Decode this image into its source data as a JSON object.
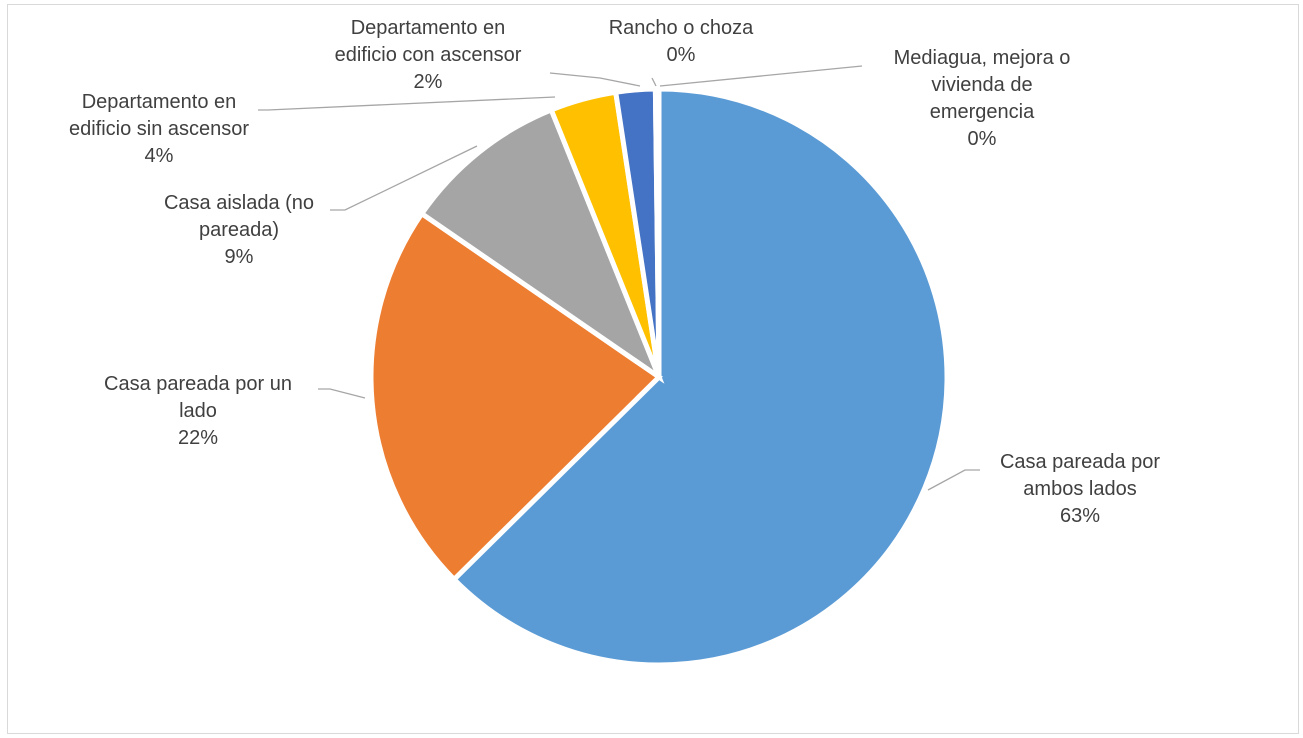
{
  "chart_data": {
    "type": "pie",
    "title": "",
    "start_angle_deg": 0,
    "direction": "clockwise",
    "slices": [
      {
        "category": "Casa pareada por ambos lados",
        "label_lines": [
          "Casa pareada por",
          "ambos lados"
        ],
        "percent_label": "63%",
        "value": 62.6,
        "color": "#5b9bd5"
      },
      {
        "category": "Casa pareada por un lado",
        "label_lines": [
          "Casa pareada por un",
          "lado"
        ],
        "percent_label": "22%",
        "value": 22.0,
        "color": "#ed7d31"
      },
      {
        "category": "Casa aislada (no pareada)",
        "label_lines": [
          "Casa aislada (no",
          "pareada)"
        ],
        "percent_label": "9%",
        "value": 9.3,
        "color": "#a5a5a5"
      },
      {
        "category": "Departamento en edificio sin ascensor",
        "label_lines": [
          "Departamento en",
          "edificio sin ascensor"
        ],
        "percent_label": "4%",
        "value": 3.7,
        "color": "#ffc000"
      },
      {
        "category": "Departamento en edificio con ascensor",
        "label_lines": [
          "Departamento en",
          "edificio con ascensor"
        ],
        "percent_label": "2%",
        "value": 2.2,
        "color": "#4472c4"
      },
      {
        "category": "Rancho o choza",
        "label_lines": [
          "Rancho o choza"
        ],
        "percent_label": "0%",
        "value": 0.1,
        "color": "#70ad47"
      },
      {
        "category": "Mediagua, mejora o vivienda de emergencia",
        "label_lines": [
          "Mediagua, mejora o",
          "vivienda de",
          "emergencia"
        ],
        "percent_label": "0%",
        "value": 0.1,
        "color": "#255e91"
      }
    ],
    "legend": "none",
    "data_labels": "outside with leader lines"
  }
}
